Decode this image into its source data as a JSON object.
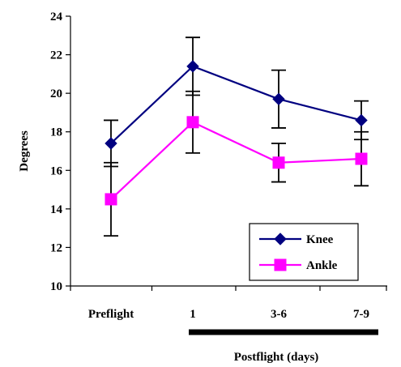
{
  "chart_data": {
    "type": "line",
    "title": "",
    "ylabel": "Degrees",
    "xlabel": "Postflight (days)",
    "categories": [
      "Preflight",
      "1",
      "3-6",
      "7-9"
    ],
    "ylim": [
      10,
      24
    ],
    "yticks": [
      10,
      12,
      14,
      16,
      18,
      20,
      22,
      24
    ],
    "grid": false,
    "legend_position": "bottom-right",
    "postflight_bar": {
      "from_category": "1",
      "to_category": "7-9"
    },
    "series": [
      {
        "name": "Knee",
        "color": "#000080",
        "marker": "diamond",
        "values": [
          17.4,
          21.4,
          19.7,
          18.6
        ],
        "error": [
          1.2,
          1.5,
          1.5,
          1.0
        ]
      },
      {
        "name": "Ankle",
        "color": "#FF00FF",
        "marker": "square",
        "values": [
          14.5,
          18.5,
          16.4,
          16.6
        ],
        "error": [
          1.9,
          1.6,
          1.0,
          1.4
        ]
      }
    ]
  }
}
